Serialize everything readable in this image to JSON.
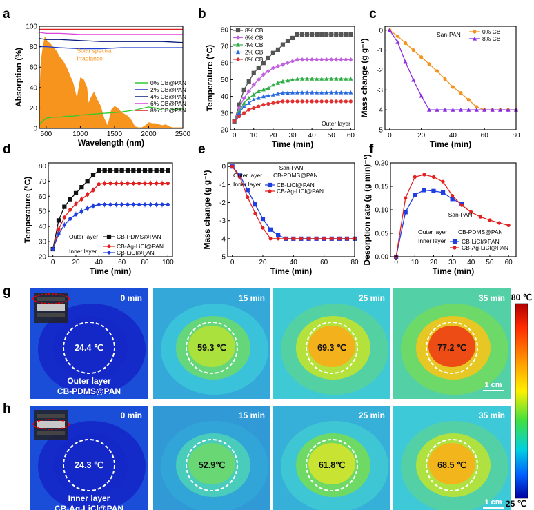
{
  "chart_data": [
    {
      "panel": "a",
      "type": "line",
      "xlabel": "Wavelength (nm)",
      "ylabel": "Absorption (%)",
      "xlim": [
        400,
        2500
      ],
      "ylim": [
        0,
        100
      ],
      "xticks": [
        500,
        1000,
        1500,
        2000,
        2500
      ],
      "yticks": [
        0,
        20,
        40,
        60,
        80,
        100
      ],
      "annotation": "Solar spectral\nirradiance",
      "legend_position": "center-right",
      "series": [
        {
          "name": "0% CB@PAN",
          "color": "#2ecc2e",
          "x": [
            400,
            450,
            500,
            600,
            700,
            800,
            900,
            1000,
            1200,
            1400,
            1600,
            1800,
            2000,
            2100,
            2200,
            2300,
            2400,
            2500
          ],
          "y": [
            4,
            7,
            10,
            11,
            11,
            12,
            12,
            13,
            14,
            15,
            16,
            18,
            21,
            20,
            18,
            18,
            19,
            19
          ]
        },
        {
          "name": "2% CB@PAN",
          "color": "#1f3fcc",
          "x": [
            400,
            500,
            700,
            1000,
            1300,
            1600,
            1900,
            2200,
            2500
          ],
          "y": [
            80,
            80,
            79,
            78,
            78,
            79,
            79,
            79,
            79
          ]
        },
        {
          "name": "4% CB@PAN",
          "color": "#0a1a80",
          "x": [
            400,
            500,
            700,
            1000,
            1300,
            1600,
            1900,
            2200,
            2500
          ],
          "y": [
            88,
            87,
            87,
            86,
            85,
            85,
            85,
            85,
            84
          ]
        },
        {
          "name": "6% CB@PAN",
          "color": "#e040d8",
          "x": [
            400,
            500,
            700,
            1000,
            1300,
            1600,
            1900,
            2200,
            2500
          ],
          "y": [
            94,
            93,
            93,
            92,
            92,
            92,
            92,
            92,
            92
          ]
        },
        {
          "name": "8% CB@PAN",
          "color": "#dd2222",
          "x": [
            400,
            500,
            700,
            1000,
            1300,
            1600,
            1900,
            2200,
            2500
          ],
          "y": [
            97,
            97,
            97,
            97,
            97,
            97,
            97,
            97,
            97
          ]
        }
      ],
      "irradiance": {
        "color": "#f7941d",
        "x": [
          400,
          420,
          450,
          480,
          500,
          520,
          550,
          600,
          650,
          700,
          750,
          800,
          850,
          900,
          920,
          950,
          980,
          1000,
          1050,
          1100,
          1120,
          1150,
          1200,
          1250,
          1300,
          1350,
          1400,
          1450,
          1500,
          1550,
          1600,
          1650,
          1700,
          1750,
          1800,
          1850,
          1900,
          1950,
          2000,
          2050,
          2100,
          2150,
          2200,
          2250,
          2300,
          2350,
          2400,
          2450,
          2500
        ],
        "y": [
          30,
          65,
          80,
          90,
          88,
          85,
          84,
          80,
          76,
          70,
          66,
          60,
          52,
          44,
          38,
          30,
          42,
          50,
          48,
          40,
          25,
          30,
          36,
          28,
          22,
          10,
          3,
          18,
          22,
          20,
          16,
          14,
          12,
          8,
          2,
          1,
          1,
          3,
          6,
          5,
          5,
          4,
          3,
          4,
          2,
          1,
          1,
          1,
          1
        ]
      }
    },
    {
      "panel": "b",
      "type": "line",
      "xlabel": "Time (min)",
      "ylabel": "Temperature (°C)",
      "xlim": [
        -2,
        62
      ],
      "ylim": [
        20,
        82
      ],
      "xticks": [
        0,
        10,
        20,
        30,
        40,
        50,
        60
      ],
      "yticks": [
        20,
        30,
        40,
        50,
        60,
        70,
        80
      ],
      "annotation": "Outer layer",
      "legend_position": "top-left",
      "x": [
        0,
        2.5,
        5,
        7.5,
        10,
        12.5,
        15,
        17.5,
        20,
        22.5,
        25,
        27.5,
        30,
        32.5,
        35,
        37.5,
        40,
        42.5,
        45,
        47.5,
        50,
        52.5,
        55,
        57.5,
        60
      ],
      "series": [
        {
          "name": "8% CB",
          "color": "#555555",
          "marker": "square",
          "y": [
            25,
            35,
            44,
            49,
            54,
            57,
            60,
            63,
            66,
            68,
            71,
            73,
            75,
            77,
            77,
            77,
            77,
            77,
            77,
            77,
            77,
            77,
            77,
            77,
            77
          ]
        },
        {
          "name": "6% CB",
          "color": "#c062e0",
          "marker": "diamond",
          "y": [
            25,
            33,
            39,
            43,
            47,
            50,
            53,
            55,
            57,
            58,
            59,
            60,
            61,
            62,
            62,
            62,
            62,
            62,
            62,
            62,
            62,
            62,
            62,
            62,
            62
          ]
        },
        {
          "name": "4% CB",
          "color": "#2fae45",
          "marker": "triangle",
          "y": [
            25,
            31,
            36,
            39,
            41,
            43,
            44,
            45,
            47,
            48,
            49,
            49.5,
            50,
            50.5,
            50.5,
            50.5,
            50.5,
            50.5,
            50.5,
            50.5,
            50.5,
            50.5,
            50.5,
            50.5,
            50.5
          ]
        },
        {
          "name": "2% CB",
          "color": "#2a6ae0",
          "marker": "triangle",
          "y": [
            25,
            30,
            34,
            36,
            38,
            39,
            40,
            40.5,
            41,
            41.5,
            42,
            42,
            42.3,
            42.3,
            42.3,
            42.3,
            42.3,
            42.3,
            42.3,
            42.3,
            42.3,
            42.3,
            42.3,
            42.3,
            42.3
          ]
        },
        {
          "name": "0% CB",
          "color": "#e23030",
          "marker": "circle",
          "y": [
            25,
            28,
            30,
            32,
            33,
            34,
            35,
            35.5,
            36,
            36.5,
            37,
            37,
            37,
            37,
            37,
            37,
            37,
            37,
            37,
            37,
            37,
            37,
            37,
            37,
            37
          ]
        }
      ]
    },
    {
      "panel": "c",
      "type": "line",
      "xlabel": "Time (min)",
      "ylabel": "Mass change (g g⁻¹)",
      "xlim": [
        -3,
        80
      ],
      "ylim": [
        -5,
        0.2
      ],
      "xticks": [
        0,
        20,
        40,
        60,
        80
      ],
      "yticks": [
        0,
        -1,
        -2,
        -3,
        -4,
        -5
      ],
      "annotation": "San-PAN",
      "legend_position": "top-right",
      "series": [
        {
          "name": "0% CB",
          "color": "#f5921e",
          "marker": "circle",
          "x": [
            0,
            5,
            10,
            15,
            20,
            25,
            30,
            35,
            40,
            45,
            50,
            55,
            60,
            65,
            70,
            75,
            80
          ],
          "y": [
            0,
            -0.3,
            -0.65,
            -1.0,
            -1.35,
            -1.7,
            -2.05,
            -2.45,
            -2.85,
            -3.15,
            -3.5,
            -3.85,
            -4,
            -4,
            -4,
            -4,
            -4
          ]
        },
        {
          "name": "8% CB",
          "color": "#8a2be2",
          "marker": "triangle",
          "x": [
            0,
            5,
            10,
            15,
            20,
            25,
            30,
            35,
            40,
            45,
            50,
            55,
            60,
            65,
            70,
            75,
            80
          ],
          "y": [
            0,
            -0.6,
            -1.6,
            -2.5,
            -3.3,
            -4,
            -4,
            -4,
            -4,
            -4,
            -4,
            -4,
            -4,
            -4,
            -4,
            -4,
            -4
          ]
        }
      ]
    },
    {
      "panel": "d",
      "type": "line",
      "xlabel": "Time (min)",
      "ylabel": "Temperature (°C)",
      "xlim": [
        -4,
        104
      ],
      "ylim": [
        20,
        82
      ],
      "xticks": [
        0,
        20,
        40,
        60,
        80,
        100
      ],
      "yticks": [
        20,
        30,
        40,
        50,
        60,
        70,
        80
      ],
      "legend_labels": {
        "outer": "Outer layer",
        "inner": "Inner layer"
      },
      "x": [
        0,
        5,
        10,
        15,
        20,
        25,
        30,
        35,
        40,
        45,
        50,
        55,
        60,
        65,
        70,
        75,
        80,
        85,
        90,
        95,
        100
      ],
      "series": [
        {
          "name": "CB-PDMS@PAN",
          "group": "outer",
          "color": "#111111",
          "marker": "square",
          "y": [
            25,
            44,
            53,
            58,
            62,
            66,
            70,
            74,
            77,
            77,
            77,
            77,
            77,
            77,
            77,
            77,
            77,
            77,
            77,
            77,
            77
          ]
        },
        {
          "name": "CB-Ag-LiCl@PAN",
          "group": "inner",
          "color": "#e32020",
          "marker": "circle",
          "y": [
            25,
            38,
            46,
            51,
            55,
            58,
            61,
            64,
            68,
            68.5,
            68.5,
            68.5,
            68.5,
            68.5,
            68.5,
            68.5,
            68.5,
            68.5,
            68.5,
            68.5,
            68.5
          ]
        },
        {
          "name": "CB-LiCl@PAN",
          "group": "inner",
          "color": "#1f3fe0",
          "marker": "circle",
          "y": [
            25,
            35,
            41,
            45,
            48,
            50,
            52,
            53.5,
            54.5,
            54.5,
            54.5,
            54.5,
            54.5,
            54.5,
            54.5,
            54.5,
            54.5,
            54.5,
            54.5,
            54.5,
            54.5
          ]
        }
      ]
    },
    {
      "panel": "e",
      "type": "line",
      "xlabel": "Time (min)",
      "ylabel": "Mass change (g g⁻¹)",
      "xlim": [
        -3,
        80
      ],
      "ylim": [
        -5,
        0.2
      ],
      "xticks": [
        0,
        20,
        40,
        60,
        80
      ],
      "yticks": [
        0,
        -1,
        -2,
        -3,
        -4,
        -5
      ],
      "annotation": "San-PAN",
      "legend_labels": {
        "outer": "Outer layer",
        "inner": "Inner layer"
      },
      "outer_label": "CB-PDMS@PAN",
      "series": [
        {
          "name": "CB-LiCl@PAN",
          "group": "inner",
          "color": "#1f3fe0",
          "marker": "square",
          "x": [
            0,
            5,
            10,
            15,
            20,
            25,
            30,
            35,
            40,
            45,
            50,
            55,
            60,
            65,
            70,
            75,
            80
          ],
          "y": [
            0,
            -0.5,
            -1.3,
            -2.1,
            -2.9,
            -3.5,
            -3.8,
            -4,
            -4,
            -4,
            -4,
            -4,
            -4,
            -4,
            -4,
            -4,
            -4
          ]
        },
        {
          "name": "CB-Ag-LiCl@PAN",
          "group": "inner",
          "color": "#e32020",
          "marker": "circle",
          "x": [
            0,
            5,
            10,
            15,
            20,
            25,
            30,
            35,
            40,
            45,
            50,
            55,
            60,
            65,
            70,
            75,
            80
          ],
          "y": [
            0,
            -0.6,
            -1.7,
            -2.6,
            -3.4,
            -4,
            -4,
            -4,
            -4,
            -4,
            -4,
            -4,
            -4,
            -4,
            -4,
            -4,
            -4
          ]
        }
      ]
    },
    {
      "panel": "f",
      "type": "line",
      "xlabel": "Time (min)",
      "ylabel": "Desorption rate (g (g min)⁻¹)",
      "xlim": [
        -3,
        64
      ],
      "ylim": [
        0,
        0.2
      ],
      "xticks": [
        0,
        10,
        20,
        30,
        40,
        50,
        60
      ],
      "yticks": [
        0.0,
        0.05,
        0.1,
        0.15,
        0.2
      ],
      "annotation": "San-PAN",
      "legend_labels": {
        "outer": "Outer layer",
        "inner": "Inner layer"
      },
      "outer_label": "CB-PDMS@PAN",
      "series": [
        {
          "name": "CB-LiCl@PAN",
          "group": "inner",
          "color": "#1f3fe0",
          "marker": "square",
          "x": [
            0,
            5,
            10,
            15,
            20,
            25,
            30,
            35
          ],
          "y": [
            0,
            0.095,
            0.132,
            0.142,
            0.14,
            0.137,
            0.123,
            0.113
          ]
        },
        {
          "name": "CB-Ag-LiCl@PAN",
          "group": "inner",
          "color": "#e32020",
          "marker": "circle",
          "x": [
            0,
            5,
            10,
            15,
            20,
            25,
            30,
            35,
            40,
            45,
            50,
            55,
            60
          ],
          "y": [
            0,
            0.125,
            0.17,
            0.175,
            0.17,
            0.16,
            0.13,
            0.11,
            0.095,
            0.085,
            0.078,
            0.072,
            0.067
          ]
        }
      ]
    }
  ],
  "thermal_images": {
    "rows": [
      {
        "panel": "g",
        "caption_line1": "Outer layer",
        "caption_line2": "CB-PDMS@PAN",
        "frames": [
          {
            "time": "0 min",
            "temp": "24.4 ℃",
            "level": 0.0
          },
          {
            "time": "15 min",
            "temp": "59.3 ℃",
            "level": 0.62
          },
          {
            "time": "25 min",
            "temp": "69.3 ℃",
            "level": 0.8
          },
          {
            "time": "35 min",
            "temp": "77.2 ℃",
            "level": 0.95
          }
        ]
      },
      {
        "panel": "h",
        "caption_line1": "Inner layer",
        "caption_line2": "CB-Ag-LiCl@PAN",
        "frames": [
          {
            "time": "0 min",
            "temp": "24.3 ℃",
            "level": 0.0
          },
          {
            "time": "15 min",
            "temp": "52.9℃",
            "level": 0.5
          },
          {
            "time": "25 min",
            "temp": "61.8℃",
            "level": 0.66
          },
          {
            "time": "35 min",
            "temp": "68.5 ℃",
            "level": 0.79
          }
        ]
      }
    ],
    "scale_bar": "1 cm",
    "colorbar": {
      "max": "80 ℃",
      "min": "25 ℃"
    }
  }
}
